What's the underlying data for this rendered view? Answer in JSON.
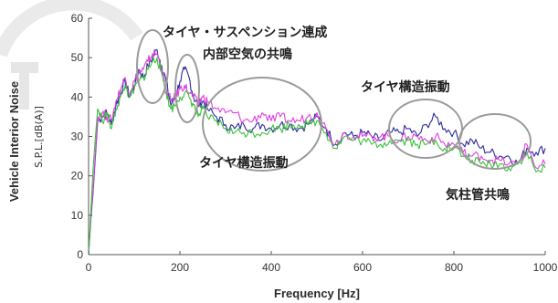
{
  "chart_data": {
    "type": "line",
    "title": "",
    "xlabel": "Frequency  [Hz]",
    "ylabel": "Vehicle Interior Noise",
    "ylabel_unit": "S.P.L.[dB(A)]",
    "xlim": [
      0,
      1000
    ],
    "ylim": [
      0,
      60
    ],
    "xticks": [
      0,
      200,
      400,
      600,
      800,
      1000
    ],
    "yticks": [
      0,
      10,
      20,
      30,
      40,
      50,
      60
    ],
    "grid": false,
    "legend": "none",
    "series": [
      {
        "color": "#2b2b9a",
        "x": [
          0,
          5,
          10,
          15,
          20,
          30,
          40,
          50,
          60,
          70,
          80,
          90,
          100,
          110,
          120,
          130,
          140,
          150,
          160,
          170,
          180,
          190,
          200,
          210,
          220,
          230,
          240,
          250,
          260,
          280,
          300,
          320,
          340,
          360,
          380,
          400,
          420,
          440,
          460,
          480,
          500,
          520,
          540,
          560,
          580,
          600,
          620,
          640,
          660,
          680,
          700,
          720,
          740,
          760,
          780,
          800,
          820,
          840,
          860,
          880,
          900,
          920,
          940,
          960,
          980,
          1000
        ],
        "y": [
          0,
          9,
          16,
          25,
          34,
          35,
          36,
          33,
          38,
          41,
          44,
          40,
          43,
          47,
          45,
          48,
          50,
          52,
          48,
          44,
          38,
          40,
          44,
          47,
          45,
          40,
          38,
          39,
          37,
          35,
          33,
          32,
          33,
          32,
          33,
          32,
          33,
          33,
          32,
          33,
          35,
          32,
          28,
          31,
          30,
          31,
          30,
          29,
          31,
          31,
          32,
          30,
          33,
          35,
          32,
          31,
          28,
          29,
          27,
          26,
          25,
          25,
          23,
          27,
          26,
          27
        ]
      },
      {
        "color": "#e040e0",
        "x": [
          0,
          5,
          10,
          15,
          20,
          30,
          40,
          50,
          60,
          70,
          80,
          90,
          100,
          110,
          120,
          130,
          140,
          150,
          160,
          170,
          180,
          190,
          200,
          210,
          220,
          230,
          240,
          250,
          260,
          280,
          300,
          320,
          340,
          360,
          380,
          400,
          420,
          440,
          460,
          480,
          500,
          520,
          540,
          560,
          580,
          600,
          620,
          640,
          660,
          680,
          700,
          720,
          740,
          760,
          780,
          800,
          820,
          840,
          860,
          880,
          900,
          920,
          940,
          960,
          980,
          1000
        ],
        "y": [
          0,
          10,
          17,
          26,
          35,
          36,
          35,
          34,
          39,
          42,
          45,
          41,
          44,
          46,
          47,
          49,
          51,
          51,
          47,
          42,
          39,
          40,
          42,
          43,
          41,
          40,
          38,
          40,
          39,
          37,
          36,
          36,
          34,
          34,
          36,
          34,
          35,
          34,
          34,
          35,
          36,
          32,
          28,
          31,
          30,
          30,
          30,
          30,
          30,
          29,
          30,
          30,
          29,
          30,
          28,
          28,
          26,
          25,
          25,
          24,
          24,
          23,
          23,
          28,
          22,
          23
        ]
      },
      {
        "color": "#3ac23a",
        "x": [
          0,
          5,
          10,
          15,
          20,
          30,
          40,
          50,
          60,
          70,
          80,
          90,
          100,
          110,
          120,
          130,
          140,
          150,
          160,
          170,
          180,
          190,
          200,
          210,
          220,
          230,
          240,
          250,
          260,
          280,
          300,
          320,
          340,
          360,
          380,
          400,
          420,
          440,
          460,
          480,
          500,
          520,
          540,
          560,
          580,
          600,
          620,
          640,
          660,
          680,
          700,
          720,
          740,
          760,
          780,
          800,
          820,
          840,
          860,
          880,
          900,
          920,
          940,
          960,
          980,
          1000
        ],
        "y": [
          0,
          11,
          22,
          30,
          37,
          34,
          36,
          32,
          37,
          40,
          43,
          40,
          42,
          44,
          45,
          47,
          49,
          50,
          46,
          41,
          37,
          38,
          40,
          41,
          40,
          38,
          35,
          37,
          35,
          34,
          32,
          31,
          31,
          31,
          31,
          32,
          32,
          33,
          33,
          33,
          34,
          31,
          27,
          30,
          29,
          29,
          28,
          28,
          29,
          29,
          29,
          28,
          28,
          29,
          27,
          27,
          25,
          24,
          23,
          23,
          23,
          22,
          23,
          26,
          21,
          22
        ]
      }
    ],
    "annotations": [
      {
        "text": "タイヤ・サスペンション連成"
      },
      {
        "text": "内部空気の共鳴"
      },
      {
        "text": "タイヤ構造振動"
      },
      {
        "text": "タイヤ構造振動"
      },
      {
        "text": "気柱管共鳴"
      }
    ]
  }
}
